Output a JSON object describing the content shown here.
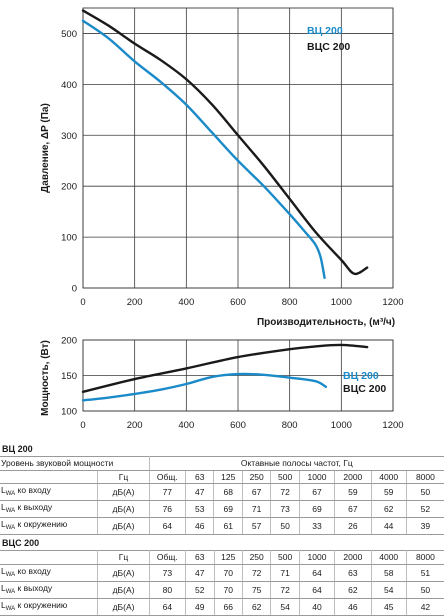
{
  "chart_data": [
    {
      "type": "line",
      "xlabel": "Производительность, (м³/ч)",
      "ylabel": "Давление, ΔP (Па)",
      "xlim": [
        0,
        1200
      ],
      "ylim": [
        0,
        550
      ],
      "xticks": [
        0,
        200,
        400,
        600,
        800,
        1000,
        1200
      ],
      "yticks": [
        0,
        100,
        200,
        300,
        400,
        500
      ],
      "grid": true,
      "legend_position": "top-right",
      "series": [
        {
          "name": "ВЦ 200",
          "color": "#1b8ac8",
          "x": [
            0,
            100,
            200,
            300,
            400,
            500,
            600,
            700,
            800,
            860,
            900,
            920,
            935
          ],
          "y": [
            525,
            490,
            445,
            405,
            360,
            305,
            250,
            200,
            145,
            110,
            85,
            60,
            20
          ]
        },
        {
          "name": "ВЦС 200",
          "color": "#1a1a1a",
          "x": [
            0,
            100,
            200,
            300,
            400,
            500,
            600,
            700,
            800,
            900,
            1000,
            1050,
            1100
          ],
          "y": [
            545,
            515,
            480,
            448,
            410,
            360,
            300,
            240,
            175,
            110,
            55,
            28,
            40
          ]
        }
      ]
    },
    {
      "type": "line",
      "ylabel": "Мощность, (Вт)",
      "xlim": [
        0,
        1200
      ],
      "ylim": [
        100,
        200
      ],
      "xticks": [
        0,
        200,
        400,
        600,
        800,
        1000,
        1200
      ],
      "yticks": [
        100,
        150,
        200
      ],
      "grid": true,
      "legend_position": "right",
      "series": [
        {
          "name": "ВЦ 200",
          "color": "#1b8ac8",
          "x": [
            0,
            100,
            200,
            300,
            400,
            500,
            600,
            700,
            800,
            900,
            940
          ],
          "y": [
            115,
            119,
            124,
            130,
            138,
            148,
            152,
            151,
            147,
            142,
            134
          ]
        },
        {
          "name": "ВЦС 200",
          "color": "#1a1a1a",
          "x": [
            0,
            200,
            400,
            600,
            800,
            900,
            1000,
            1100
          ],
          "y": [
            127,
            145,
            160,
            176,
            187,
            191,
            193,
            190
          ]
        }
      ]
    }
  ],
  "tables": [
    {
      "title": "ВЦ 200",
      "header_label": "Уровень звуковой мощности",
      "header_group": "Октавные полосы частот, Гц",
      "columns": [
        "Гц",
        "Общ.",
        "63",
        "125",
        "250",
        "500",
        "1000",
        "2000",
        "4000",
        "8000"
      ],
      "rows": [
        {
          "label": "L",
          "sub": "WA",
          "rest": " ко входу",
          "unit": "дБ(А)",
          "values": [
            "77",
            "47",
            "68",
            "67",
            "72",
            "67",
            "59",
            "59",
            "50"
          ]
        },
        {
          "label": "L",
          "sub": "WA",
          "rest": " к выходу",
          "unit": "дБ(А)",
          "values": [
            "76",
            "53",
            "69",
            "71",
            "73",
            "69",
            "67",
            "62",
            "52"
          ]
        },
        {
          "label": "L",
          "sub": "WA",
          "rest": " к окружению",
          "unit": "дБ(А)",
          "values": [
            "64",
            "46",
            "61",
            "57",
            "50",
            "33",
            "26",
            "44",
            "39"
          ]
        }
      ]
    },
    {
      "title": "ВЦС 200",
      "header_label": "",
      "header_group": "",
      "columns": [
        "Гц",
        "Общ.",
        "63",
        "125",
        "250",
        "500",
        "1000",
        "2000",
        "4000",
        "8000"
      ],
      "rows": [
        {
          "label": "L",
          "sub": "WA",
          "rest": " ко входу",
          "unit": "дБ(А)",
          "values": [
            "73",
            "47",
            "70",
            "72",
            "71",
            "64",
            "63",
            "58",
            "51"
          ]
        },
        {
          "label": "L",
          "sub": "WA",
          "rest": " к выходу",
          "unit": "дБ(А)",
          "values": [
            "80",
            "52",
            "70",
            "75",
            "72",
            "64",
            "62",
            "54",
            "50"
          ]
        },
        {
          "label": "L",
          "sub": "WA",
          "rest": " к окружению",
          "unit": "дБ(А)",
          "values": [
            "64",
            "49",
            "66",
            "62",
            "54",
            "40",
            "46",
            "45",
            "42"
          ]
        }
      ]
    }
  ]
}
